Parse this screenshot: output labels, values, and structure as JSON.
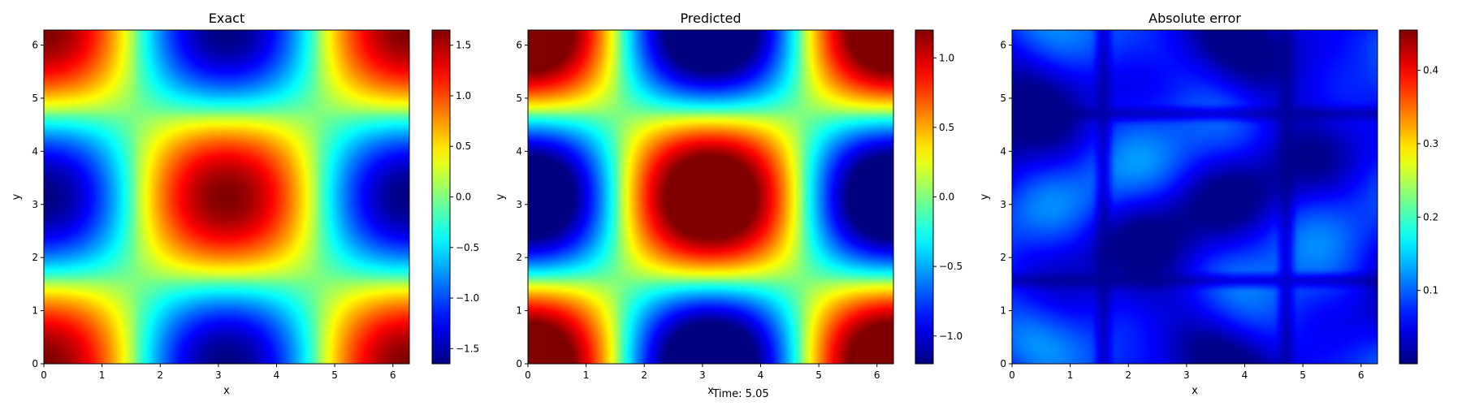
{
  "figure": {
    "suptitle_bottom": "Time: 5.05"
  },
  "chart_data": [
    {
      "type": "heatmap",
      "title": "Exact",
      "xlabel": "x",
      "ylabel": "y",
      "xlim": [
        0,
        6.283
      ],
      "ylim": [
        0,
        6.283
      ],
      "xticks": [
        "0",
        "1",
        "2",
        "3",
        "4",
        "5",
        "6"
      ],
      "yticks": [
        "0",
        "1",
        "2",
        "3",
        "4",
        "5",
        "6"
      ],
      "colormap": "jet",
      "field": "cos(x)·cos(y) scaled, amplitude ≈ 1.65",
      "amplitude": 1.65,
      "colorbar": {
        "vmin": -1.65,
        "vmax": 1.65,
        "ticks": [
          -1.5,
          -1.0,
          -0.5,
          0.0,
          0.5,
          1.0,
          1.5
        ],
        "tick_labels": [
          "−1.5",
          "−1.0",
          "−0.5",
          "0.0",
          "0.5",
          "1.0",
          "1.5"
        ]
      }
    },
    {
      "type": "heatmap",
      "title": "Predicted",
      "xlabel": "x",
      "ylabel": "y",
      "xlim": [
        0,
        6.283
      ],
      "ylim": [
        0,
        6.283
      ],
      "xticks": [
        "0",
        "1",
        "2",
        "3",
        "4",
        "5",
        "6"
      ],
      "yticks": [
        "0",
        "1",
        "2",
        "3",
        "4",
        "5",
        "6"
      ],
      "colormap": "jet",
      "field": "cos(x)·cos(y) scaled, amplitude ≈ 1.6, clipped to colorbar range",
      "amplitude": 1.6,
      "colorbar": {
        "vmin": -1.2,
        "vmax": 1.2,
        "ticks": [
          -1.0,
          -0.5,
          0.0,
          0.5,
          1.0
        ],
        "tick_labels": [
          "−1.0",
          "−0.5",
          "0.0",
          "0.5",
          "1.0"
        ]
      }
    },
    {
      "type": "heatmap",
      "title": "Absolute error",
      "xlabel": "x",
      "ylabel": "y",
      "xlim": [
        0,
        6.283
      ],
      "ylim": [
        0,
        6.283
      ],
      "xticks": [
        "0",
        "1",
        "2",
        "3",
        "4",
        "5",
        "6"
      ],
      "yticks": [
        "0",
        "1",
        "2",
        "3",
        "4",
        "5",
        "6"
      ],
      "colormap": "jet",
      "field": "small wavy error field, mostly 0.0–0.12",
      "colorbar": {
        "vmin": 0.0,
        "vmax": 0.455,
        "ticks": [
          0.1,
          0.2,
          0.3,
          0.4
        ],
        "tick_labels": [
          "0.1",
          "0.2",
          "0.3",
          "0.4"
        ]
      }
    }
  ]
}
